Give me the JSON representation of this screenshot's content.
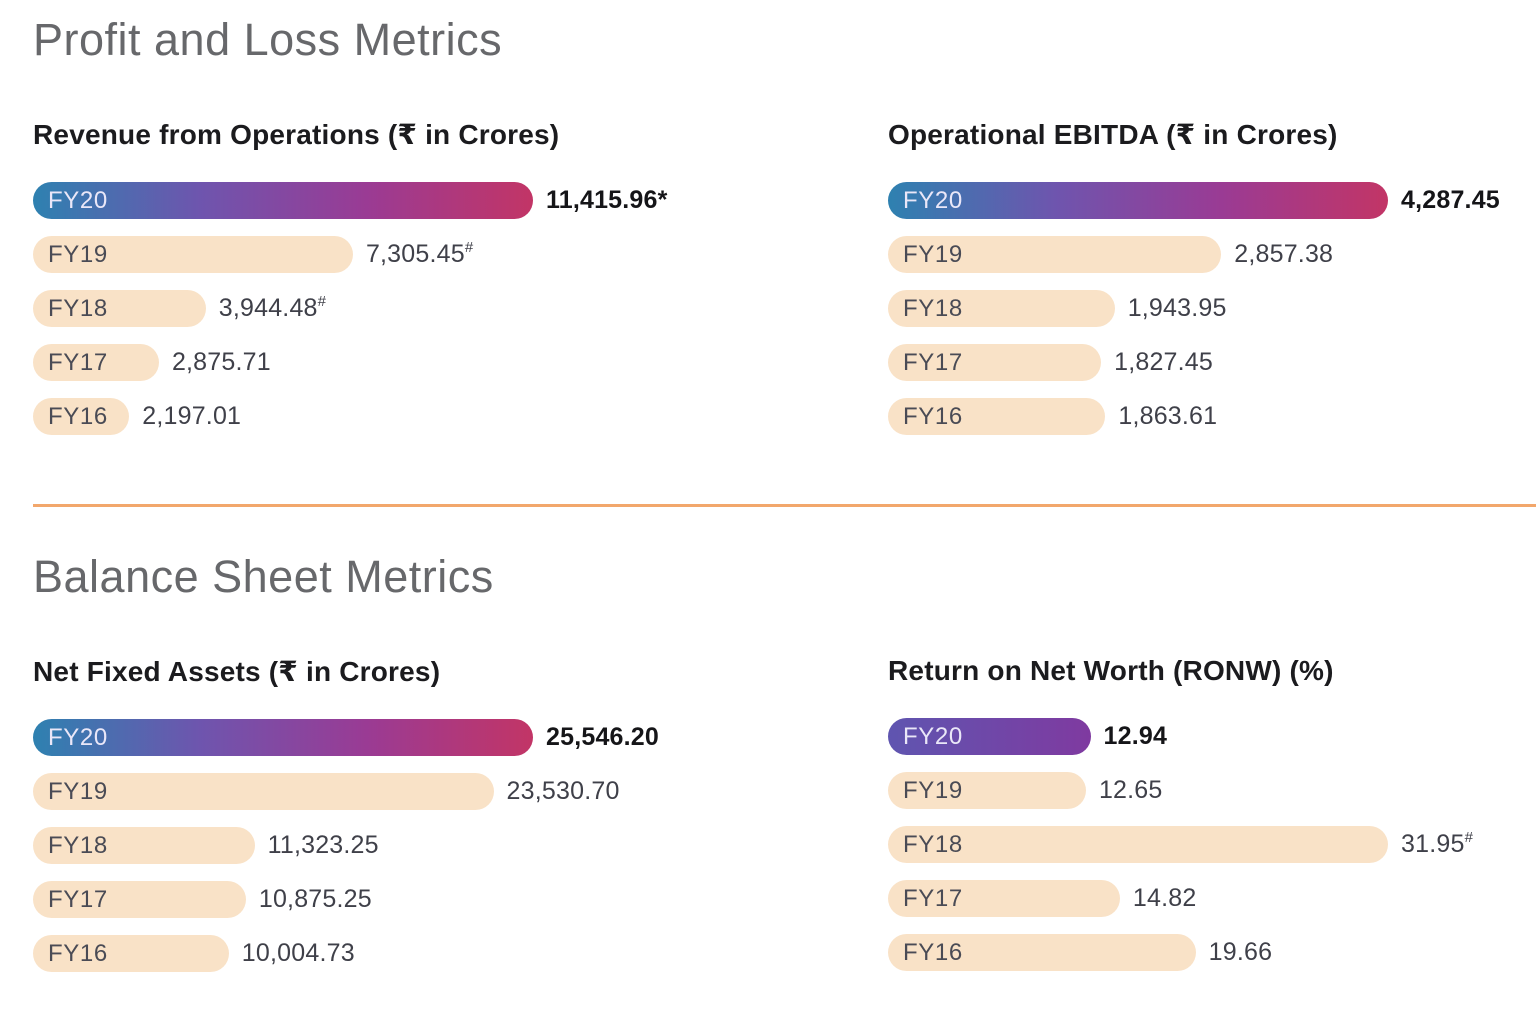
{
  "sections": [
    {
      "heading": "Profit and Loss Metrics"
    },
    {
      "heading": "Balance Sheet Metrics"
    }
  ],
  "colors": {
    "accent_gradient": [
      "#2E81B0",
      "#6E55AE",
      "#9A3B94",
      "#C23566"
    ],
    "ronw_gradient": [
      "#5F55B0",
      "#7F3AA0"
    ],
    "bar_fill": "#F9E2C7",
    "divider": "#F2A76C",
    "section_heading_text": "#67686B",
    "chart_title_text": "#1B1B1E",
    "value_text": "#3F4049",
    "bar_label_text": "#4A4B55",
    "bar_label_highlight_text": "#EAE7F8"
  },
  "chart_data": [
    {
      "type": "bar",
      "orientation": "horizontal",
      "section": 0,
      "title": "Revenue from Operations (₹ in Crores)",
      "unit": "₹ in Crores",
      "categories": [
        "FY20",
        "FY19",
        "FY18",
        "FY17",
        "FY16"
      ],
      "values": [
        11415.96,
        7305.45,
        3944.48,
        2875.71,
        2197.01
      ],
      "xlim": [
        0,
        11415.96
      ],
      "legend": "none",
      "grid": false,
      "gradient": [
        "#2E81B0",
        "#6E55AE",
        "#9A3B94",
        "#C23566"
      ],
      "rows": [
        {
          "category": "FY20",
          "value": 11415.96,
          "display": "11,415.96",
          "suffix": "*",
          "suffix_sup": false,
          "highlight": true
        },
        {
          "category": "FY19",
          "value": 7305.45,
          "display": "7,305.45",
          "suffix": "#",
          "suffix_sup": true,
          "highlight": false
        },
        {
          "category": "FY18",
          "value": 3944.48,
          "display": "3,944.48",
          "suffix": "#",
          "suffix_sup": true,
          "highlight": false
        },
        {
          "category": "FY17",
          "value": 2875.71,
          "display": "2,875.71",
          "suffix": "",
          "suffix_sup": false,
          "highlight": false
        },
        {
          "category": "FY16",
          "value": 2197.01,
          "display": "2,197.01",
          "suffix": "",
          "suffix_sup": false,
          "highlight": false
        }
      ]
    },
    {
      "type": "bar",
      "orientation": "horizontal",
      "section": 0,
      "title": "Operational EBITDA (₹ in Crores)",
      "unit": "₹ in Crores",
      "categories": [
        "FY20",
        "FY19",
        "FY18",
        "FY17",
        "FY16"
      ],
      "values": [
        4287.45,
        2857.38,
        1943.95,
        1827.45,
        1863.61
      ],
      "xlim": [
        0,
        4287.45
      ],
      "legend": "none",
      "grid": false,
      "gradient": [
        "#2E81B0",
        "#6E55AE",
        "#9A3B94",
        "#C23566"
      ],
      "rows": [
        {
          "category": "FY20",
          "value": 4287.45,
          "display": "4,287.45",
          "suffix": "",
          "suffix_sup": false,
          "highlight": true
        },
        {
          "category": "FY19",
          "value": 2857.38,
          "display": "2,857.38",
          "suffix": "",
          "suffix_sup": false,
          "highlight": false
        },
        {
          "category": "FY18",
          "value": 1943.95,
          "display": "1,943.95",
          "suffix": "",
          "suffix_sup": false,
          "highlight": false
        },
        {
          "category": "FY17",
          "value": 1827.45,
          "display": "1,827.45",
          "suffix": "",
          "suffix_sup": false,
          "highlight": false
        },
        {
          "category": "FY16",
          "value": 1863.61,
          "display": "1,863.61",
          "suffix": "",
          "suffix_sup": false,
          "highlight": false
        }
      ]
    },
    {
      "type": "bar",
      "orientation": "horizontal",
      "section": 1,
      "title": "Net Fixed Assets (₹ in Crores)",
      "unit": "₹ in Crores",
      "categories": [
        "FY20",
        "FY19",
        "FY18",
        "FY17",
        "FY16"
      ],
      "values": [
        25546.2,
        23530.7,
        11323.25,
        10875.25,
        10004.73
      ],
      "xlim": [
        0,
        25546.2
      ],
      "legend": "none",
      "grid": false,
      "gradient": [
        "#2E81B0",
        "#6E55AE",
        "#9A3B94",
        "#C23566"
      ],
      "rows": [
        {
          "category": "FY20",
          "value": 25546.2,
          "display": "25,546.20",
          "suffix": "",
          "suffix_sup": false,
          "highlight": true
        },
        {
          "category": "FY19",
          "value": 23530.7,
          "display": "23,530.70",
          "suffix": "",
          "suffix_sup": false,
          "highlight": false
        },
        {
          "category": "FY18",
          "value": 11323.25,
          "display": "11,323.25",
          "suffix": "",
          "suffix_sup": false,
          "highlight": false
        },
        {
          "category": "FY17",
          "value": 10875.25,
          "display": "10,875.25",
          "suffix": "",
          "suffix_sup": false,
          "highlight": false
        },
        {
          "category": "FY16",
          "value": 10004.73,
          "display": "10,004.73",
          "suffix": "",
          "suffix_sup": false,
          "highlight": false
        }
      ]
    },
    {
      "type": "bar",
      "orientation": "horizontal",
      "section": 1,
      "title": "Return on Net Worth (RONW) (%)",
      "unit": "%",
      "categories": [
        "FY20",
        "FY19",
        "FY18",
        "FY17",
        "FY16"
      ],
      "values": [
        12.94,
        12.65,
        31.95,
        14.82,
        19.66
      ],
      "xlim": [
        0,
        31.95
      ],
      "legend": "none",
      "grid": false,
      "gradient": [
        "#5F55B0",
        "#7F3AA0"
      ],
      "rows": [
        {
          "category": "FY20",
          "value": 12.94,
          "display": "12.94",
          "suffix": "",
          "suffix_sup": false,
          "highlight": true
        },
        {
          "category": "FY19",
          "value": 12.65,
          "display": "12.65",
          "suffix": "",
          "suffix_sup": false,
          "highlight": false
        },
        {
          "category": "FY18",
          "value": 31.95,
          "display": "31.95",
          "suffix": "#",
          "suffix_sup": true,
          "highlight": false
        },
        {
          "category": "FY17",
          "value": 14.82,
          "display": "14.82",
          "suffix": "",
          "suffix_sup": false,
          "highlight": false
        },
        {
          "category": "FY16",
          "value": 19.66,
          "display": "19.66",
          "suffix": "",
          "suffix_sup": false,
          "highlight": false
        }
      ]
    }
  ]
}
